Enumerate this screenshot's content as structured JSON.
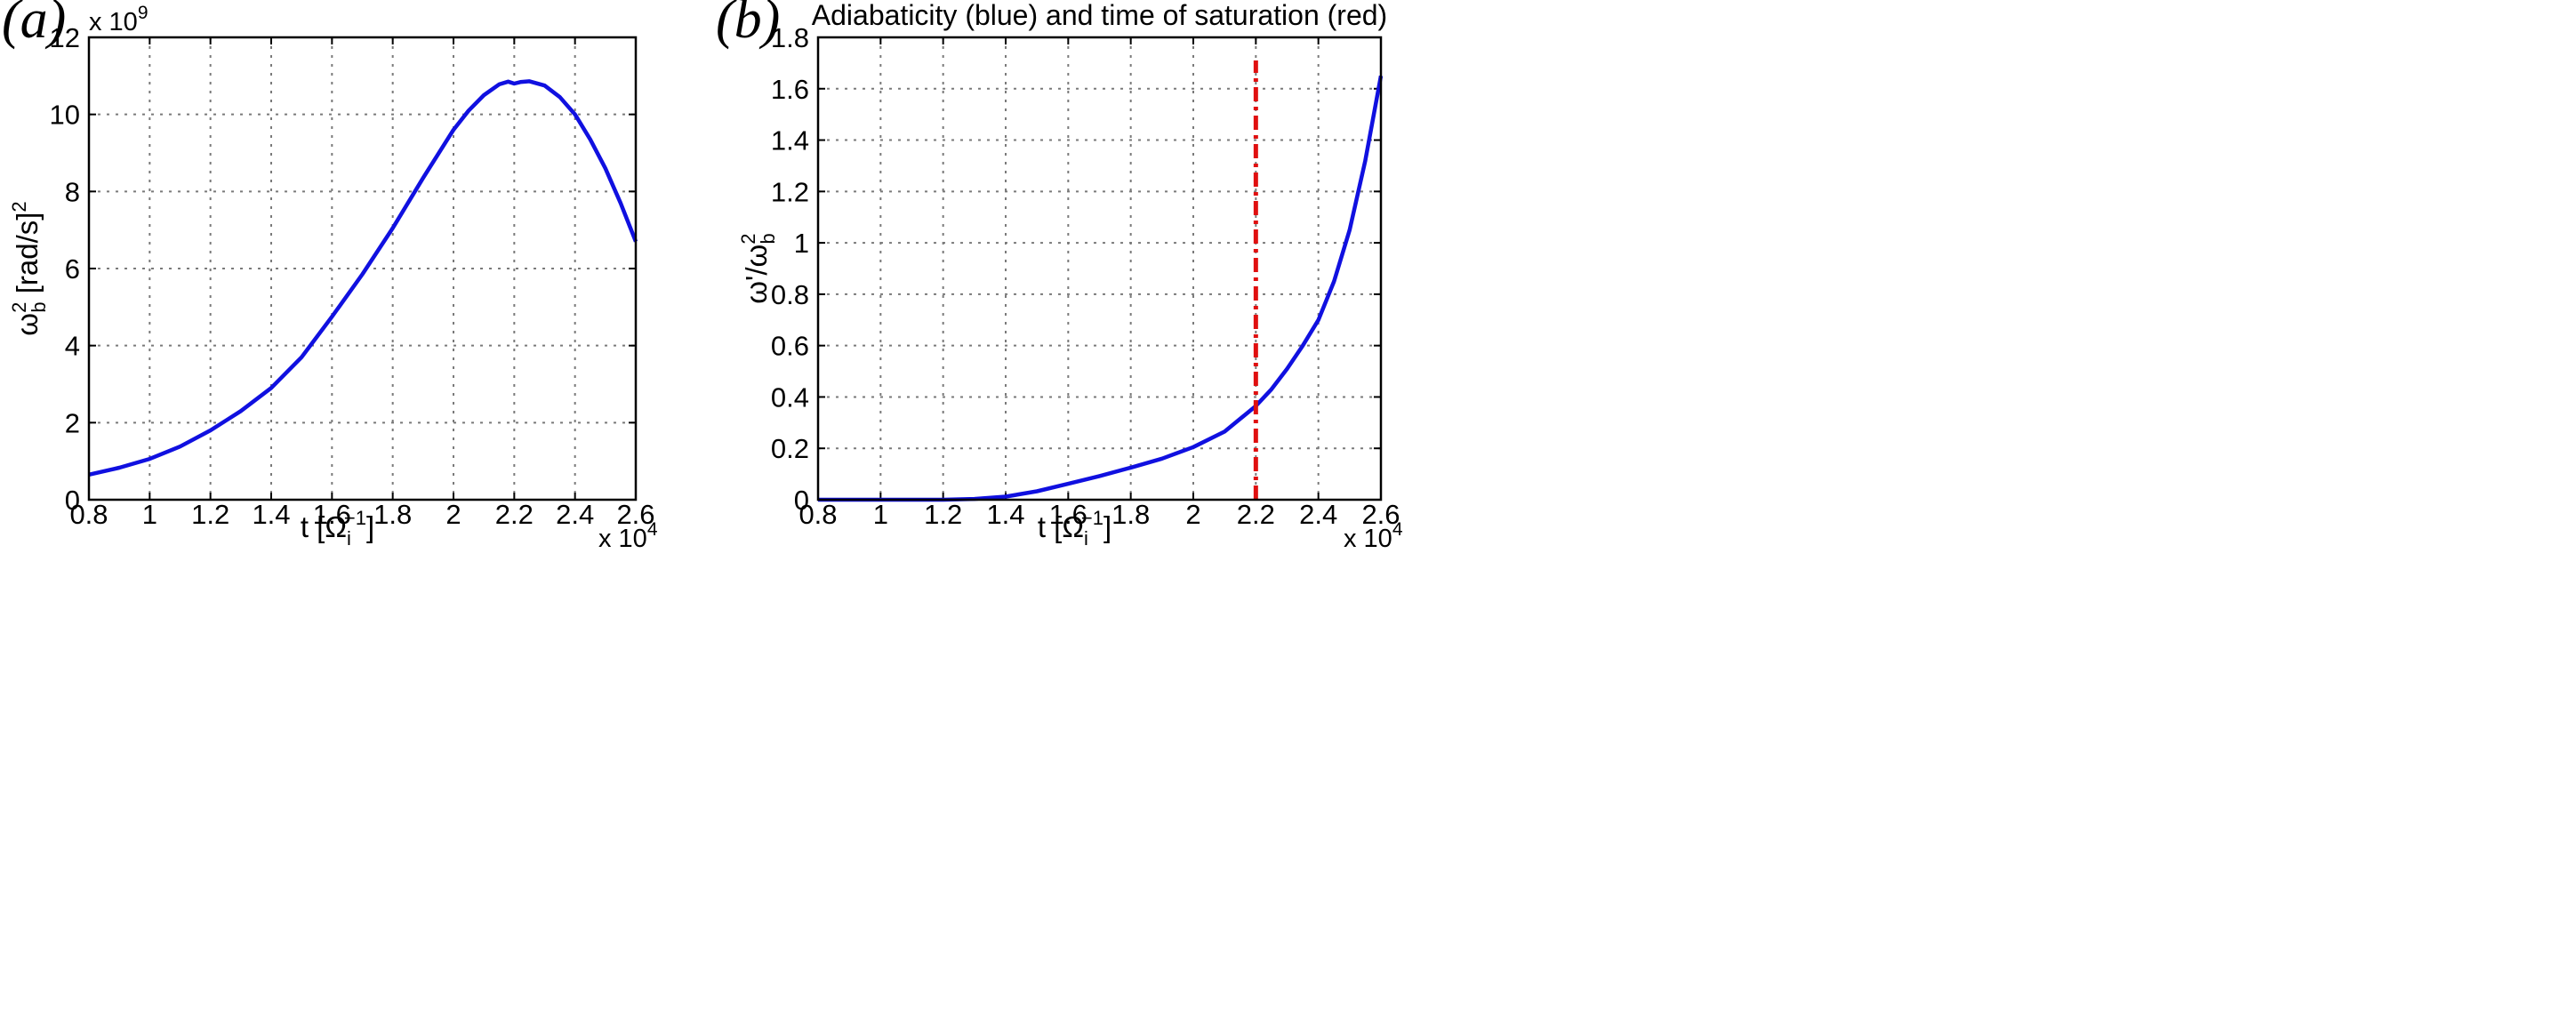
{
  "chart_data": [
    {
      "type": "line",
      "panel_label": "(a)",
      "title": "",
      "xlabel": {
        "main": "t [Ω",
        "sub": "i",
        "sup": "−1",
        "close": "]"
      },
      "ylabel": {
        "main": "ω",
        "sup": "2",
        "sub": "b",
        "unit": " [rad/s]",
        "unit_sup": "2"
      },
      "x_multiplier": {
        "base": "x 10",
        "exp": "4"
      },
      "y_multiplier": {
        "base": "x 10",
        "exp": "9"
      },
      "xlim": [
        0.8,
        2.6
      ],
      "ylim": [
        0,
        12
      ],
      "xticks": [
        0.8,
        1,
        1.2,
        1.4,
        1.6,
        1.8,
        2,
        2.2,
        2.4,
        2.6
      ],
      "xtick_labels": [
        "0.8",
        "1",
        "1.2",
        "1.4",
        "1.6",
        "1.8",
        "2",
        "2.2",
        "2.4",
        "2.6"
      ],
      "yticks": [
        0,
        2,
        4,
        6,
        8,
        10,
        12
      ],
      "ytick_labels": [
        "0",
        "2",
        "4",
        "6",
        "8",
        "10",
        "12"
      ],
      "grid": true,
      "series": [
        {
          "color": "#1010e0",
          "x": [
            0.8,
            0.9,
            1.0,
            1.1,
            1.2,
            1.3,
            1.4,
            1.5,
            1.6,
            1.7,
            1.8,
            1.9,
            2.0,
            2.05,
            2.1,
            2.15,
            2.18,
            2.2,
            2.22,
            2.25,
            2.3,
            2.35,
            2.4,
            2.45,
            2.5,
            2.55,
            2.6
          ],
          "y": [
            0.65,
            0.83,
            1.06,
            1.38,
            1.8,
            2.3,
            2.9,
            3.7,
            4.75,
            5.85,
            7.05,
            8.35,
            9.6,
            10.1,
            10.5,
            10.78,
            10.85,
            10.8,
            10.84,
            10.86,
            10.75,
            10.45,
            10.0,
            9.35,
            8.6,
            7.7,
            6.7
          ]
        }
      ]
    },
    {
      "type": "line",
      "panel_label": "(b)",
      "title": "Adiabaticity (blue) and time of saturation (red)",
      "xlabel": {
        "main": "t [Ω",
        "sub": "i",
        "sup": "−1",
        "close": "]"
      },
      "ylabel": {
        "main": "ω'/ω",
        "sup": "2",
        "sub": "b"
      },
      "x_multiplier": {
        "base": "x 10",
        "exp": "4"
      },
      "xlim": [
        0.8,
        2.6
      ],
      "ylim": [
        0,
        1.8
      ],
      "xticks": [
        0.8,
        1,
        1.2,
        1.4,
        1.6,
        1.8,
        2,
        2.2,
        2.4,
        2.6
      ],
      "xtick_labels": [
        "0.8",
        "1",
        "1.2",
        "1.4",
        "1.6",
        "1.8",
        "2",
        "2.2",
        "2.4",
        "2.6"
      ],
      "yticks": [
        0,
        0.2,
        0.4,
        0.6,
        0.8,
        1,
        1.2,
        1.4,
        1.6,
        1.8
      ],
      "ytick_labels": [
        "0",
        "0.2",
        "0.4",
        "0.6",
        "0.8",
        "1",
        "1.2",
        "1.4",
        "1.6",
        "1.8"
      ],
      "grid": true,
      "series": [
        {
          "color": "#1010e0",
          "x": [
            0.8,
            1.0,
            1.2,
            1.3,
            1.4,
            1.5,
            1.6,
            1.7,
            1.8,
            1.9,
            2.0,
            2.1,
            2.2,
            2.25,
            2.3,
            2.35,
            2.4,
            2.45,
            2.5,
            2.55,
            2.6
          ],
          "y": [
            0.0,
            0.0,
            0.0,
            0.003,
            0.012,
            0.033,
            0.062,
            0.092,
            0.125,
            0.16,
            0.205,
            0.265,
            0.365,
            0.43,
            0.51,
            0.6,
            0.7,
            0.85,
            1.05,
            1.32,
            1.65
          ]
        }
      ],
      "vline": {
        "x": 2.2,
        "y0": 0,
        "y1": 1.71,
        "color": "#e01010",
        "style": "dash-dot"
      }
    }
  ]
}
